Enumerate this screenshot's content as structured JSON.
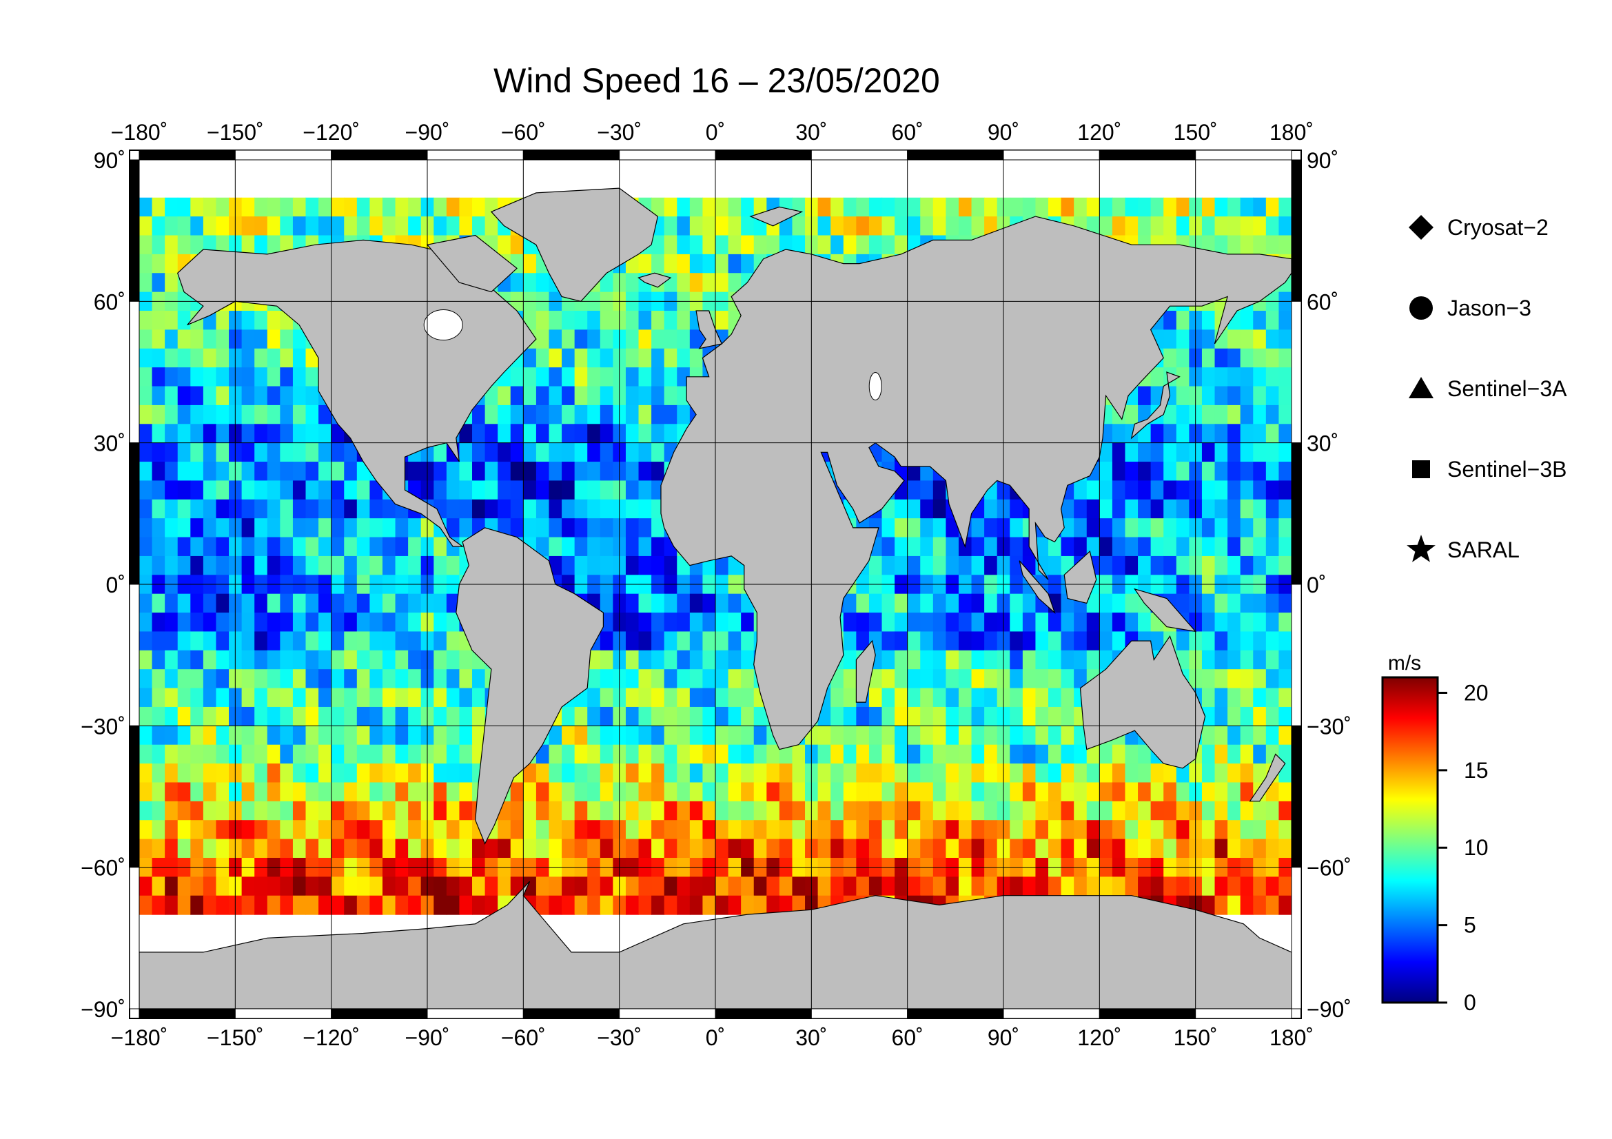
{
  "title": "Wind Speed 16 – 23/05/2020",
  "map": {
    "lon_ticks": [
      {
        "value": -180,
        "label": "−180"
      },
      {
        "value": -150,
        "label": "−150"
      },
      {
        "value": -120,
        "label": "−120"
      },
      {
        "value": -90,
        "label": "−90"
      },
      {
        "value": -60,
        "label": "−60"
      },
      {
        "value": -30,
        "label": "−30"
      },
      {
        "value": 0,
        "label": "0"
      },
      {
        "value": 30,
        "label": "30"
      },
      {
        "value": 60,
        "label": "60"
      },
      {
        "value": 90,
        "label": "90"
      },
      {
        "value": 120,
        "label": "120"
      },
      {
        "value": 150,
        "label": "150"
      },
      {
        "value": 180,
        "label": "180"
      }
    ],
    "lat_ticks": [
      {
        "value": 90,
        "label": "90"
      },
      {
        "value": 60,
        "label": "60"
      },
      {
        "value": 30,
        "label": "30"
      },
      {
        "value": 0,
        "label": "0"
      },
      {
        "value": -30,
        "label": "−30"
      },
      {
        "value": -60,
        "label": "−60"
      },
      {
        "value": -90,
        "label": "−90"
      }
    ],
    "degree_mark": "˚",
    "colors": {
      "land": "#bebebe",
      "water_gap": "#ffffff",
      "grid": "#000000"
    }
  },
  "legend": {
    "items": [
      {
        "symbol": "diamond",
        "label": "Cryosat−2"
      },
      {
        "symbol": "circle",
        "label": "Jason−3"
      },
      {
        "symbol": "triangle",
        "label": "Sentinel−3A"
      },
      {
        "symbol": "square",
        "label": "Sentinel−3B"
      },
      {
        "symbol": "star",
        "label": "SARAL"
      }
    ]
  },
  "colorbar": {
    "unit": "m/s",
    "min": 0,
    "max": 21,
    "ticks": [
      {
        "value": 0,
        "label": "0"
      },
      {
        "value": 5,
        "label": "5"
      },
      {
        "value": 10,
        "label": "10"
      },
      {
        "value": 15,
        "label": "15"
      },
      {
        "value": 20,
        "label": "20"
      }
    ],
    "stops": [
      "#00007f",
      "#0000ff",
      "#007fff",
      "#00ffff",
      "#7fff7f",
      "#ffff00",
      "#ff7f00",
      "#ff0000",
      "#7f0000"
    ]
  }
}
